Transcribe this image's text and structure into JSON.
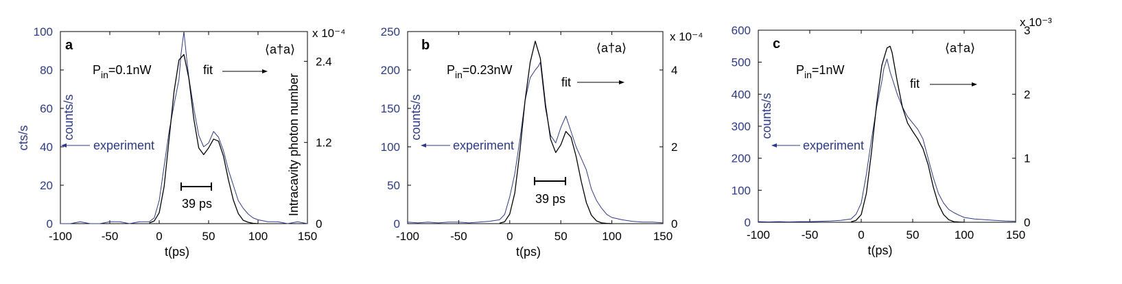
{
  "chart_data": [
    {
      "type": "line",
      "panel_label": "a",
      "xlabel": "t(ps)",
      "ylabel_outer": "cts/s",
      "ylabel_inner": "counts/s",
      "ylabel_right": "Intracavity photon number",
      "right_label": "⟨a†a⟩",
      "right_exponent": "x 10⁻⁴",
      "power_label": "P",
      "power_sub": "in",
      "power_value": "=0.1nW",
      "fit_label": "fit",
      "experiment_label": "experiment",
      "scale_bar_label": "39 ps",
      "xlim": [
        -100,
        150
      ],
      "ylim": [
        0,
        100
      ],
      "ylim_right": [
        0,
        2.84
      ],
      "xticks": [
        "-100",
        "-50",
        "0",
        "50",
        "100",
        "150"
      ],
      "yticks": [
        "0",
        "20",
        "40",
        "60",
        "80",
        "100"
      ],
      "yticks_right": [
        "0",
        "1.2",
        "2.4"
      ],
      "yticks_right_values": [
        0,
        1.2,
        2.4
      ],
      "series": [
        {
          "role": "experiment",
          "color": "#2b3a8c",
          "x": [
            -100,
            -90,
            -80,
            -70,
            -60,
            -50,
            -40,
            -30,
            -20,
            -10,
            -5,
            0,
            5,
            10,
            15,
            20,
            22,
            25,
            28,
            30,
            35,
            40,
            45,
            50,
            55,
            60,
            65,
            70,
            75,
            80,
            85,
            90,
            95,
            100,
            110,
            120,
            130,
            140,
            150
          ],
          "y": [
            0,
            0,
            1,
            0,
            0,
            1,
            1,
            0,
            1,
            1,
            3,
            12,
            30,
            48,
            62,
            75,
            88,
            100,
            85,
            76,
            60,
            46,
            40,
            42,
            48,
            45,
            38,
            28,
            20,
            12,
            8,
            5,
            3,
            2,
            1,
            1,
            0,
            1,
            0
          ]
        },
        {
          "role": "fit",
          "color": "#000000",
          "x": [
            -10,
            -5,
            0,
            5,
            10,
            15,
            20,
            25,
            30,
            35,
            40,
            45,
            50,
            55,
            60,
            65,
            70,
            75,
            80,
            85,
            90,
            95,
            100
          ],
          "y": [
            0.01,
            0.04,
            0.16,
            0.55,
            1.25,
            1.95,
            2.42,
            2.5,
            2.15,
            1.55,
            1.12,
            1.02,
            1.12,
            1.25,
            1.22,
            1.0,
            0.65,
            0.35,
            0.15,
            0.05,
            0.02,
            0.005,
            0
          ]
        }
      ]
    },
    {
      "type": "line",
      "panel_label": "b",
      "xlabel": "t(ps)",
      "ylabel_inner": "counts/s",
      "right_label": "⟨a†a⟩",
      "right_exponent": "x 10⁻⁴",
      "power_label": "P",
      "power_sub": "in",
      "power_value": "=0.23nW",
      "fit_label": "fit",
      "experiment_label": "experiment",
      "scale_bar_label": "39 ps",
      "xlim": [
        -100,
        150
      ],
      "ylim": [
        0,
        250
      ],
      "ylim_right": [
        0,
        5
      ],
      "xticks": [
        "-100",
        "-50",
        "0",
        "50",
        "100",
        "150"
      ],
      "yticks": [
        "0",
        "50",
        "100",
        "150",
        "200",
        "250"
      ],
      "yticks_right": [
        "0",
        "2",
        "4"
      ],
      "yticks_right_values": [
        0,
        2,
        4
      ],
      "series": [
        {
          "role": "experiment",
          "color": "#2b3a8c",
          "x": [
            -100,
            -90,
            -80,
            -70,
            -60,
            -50,
            -40,
            -30,
            -20,
            -10,
            -5,
            0,
            5,
            10,
            15,
            20,
            25,
            28,
            30,
            35,
            40,
            45,
            50,
            55,
            60,
            65,
            70,
            75,
            80,
            85,
            90,
            95,
            100,
            110,
            120,
            130,
            140,
            150
          ],
          "y": [
            2,
            1,
            2,
            1,
            2,
            2,
            1,
            2,
            3,
            5,
            12,
            35,
            65,
            110,
            160,
            190,
            200,
            205,
            210,
            150,
            115,
            105,
            125,
            140,
            120,
            100,
            85,
            70,
            45,
            30,
            20,
            12,
            8,
            5,
            3,
            2,
            2,
            1
          ],
          "note": ""
        },
        {
          "role": "fit",
          "color": "#000000",
          "x": [
            -10,
            -5,
            0,
            5,
            10,
            15,
            20,
            25,
            30,
            35,
            40,
            45,
            50,
            55,
            60,
            65,
            70,
            75,
            80,
            85,
            90,
            95,
            100
          ],
          "y": [
            0.01,
            0.05,
            0.25,
            0.8,
            1.9,
            3.2,
            4.2,
            4.75,
            4.3,
            3.1,
            2.2,
            1.85,
            2.05,
            2.4,
            2.25,
            1.75,
            1.1,
            0.55,
            0.22,
            0.07,
            0.02,
            0.005,
            0
          ]
        }
      ]
    },
    {
      "type": "line",
      "panel_label": "c",
      "xlabel": "t(ps)",
      "ylabel_inner": "counts/s",
      "right_label": "⟨a†a⟩",
      "right_exponent": "x 10⁻³",
      "power_label": "P",
      "power_sub": "in",
      "power_value": "=1nW",
      "fit_label": "fit",
      "experiment_label": "experiment",
      "xlim": [
        -100,
        150
      ],
      "ylim": [
        0,
        600
      ],
      "ylim_right": [
        0,
        3
      ],
      "xticks": [
        "-100",
        "-50",
        "0",
        "50",
        "100",
        "150"
      ],
      "yticks": [
        "0",
        "100",
        "200",
        "300",
        "400",
        "500",
        "600"
      ],
      "yticks_right": [
        "0",
        "1",
        "2",
        "3"
      ],
      "yticks_right_values": [
        0,
        1,
        2,
        3
      ],
      "series": [
        {
          "role": "experiment",
          "color": "#2b3a8c",
          "x": [
            -100,
            -90,
            -80,
            -70,
            -60,
            -50,
            -40,
            -30,
            -20,
            -10,
            -5,
            0,
            5,
            10,
            15,
            20,
            22,
            25,
            28,
            30,
            35,
            40,
            45,
            50,
            55,
            60,
            65,
            70,
            75,
            80,
            85,
            90,
            95,
            100,
            110,
            120,
            130,
            140,
            150
          ],
          "y": [
            2,
            1,
            2,
            1,
            2,
            2,
            3,
            4,
            6,
            10,
            25,
            60,
            150,
            260,
            360,
            440,
            480,
            510,
            470,
            450,
            400,
            360,
            330,
            310,
            290,
            260,
            200,
            140,
            90,
            60,
            40,
            30,
            22,
            15,
            10,
            8,
            6,
            4,
            3
          ]
        },
        {
          "role": "fit",
          "color": "#000000",
          "x": [
            -10,
            -5,
            0,
            5,
            10,
            15,
            20,
            25,
            28,
            30,
            35,
            40,
            45,
            50,
            55,
            60,
            65,
            70,
            75,
            80,
            85,
            90,
            95,
            100
          ],
          "y": [
            0.005,
            0.03,
            0.12,
            0.45,
            1.1,
            1.85,
            2.45,
            2.72,
            2.75,
            2.65,
            2.2,
            1.8,
            1.55,
            1.42,
            1.3,
            1.15,
            0.9,
            0.55,
            0.28,
            0.12,
            0.04,
            0.01,
            0.003,
            0
          ]
        }
      ]
    }
  ]
}
